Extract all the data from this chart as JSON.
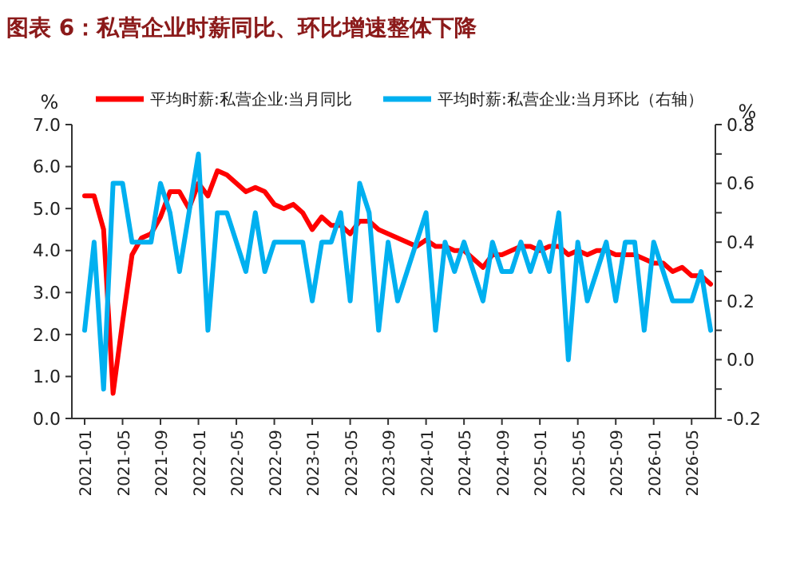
{
  "chart_data": {
    "type": "line",
    "title": "图表 6：私营企业时薪同比、环比增速整体下降",
    "ylabel": "%",
    "y2label": "%",
    "categories": [
      "2021-01",
      null,
      null,
      null,
      "2021-05",
      null,
      null,
      null,
      "2021-09",
      null,
      null,
      null,
      "2022-01",
      null,
      null,
      null,
      "2022-05",
      null,
      null,
      null,
      "2022-09",
      null,
      null,
      null,
      "2023-01",
      null,
      null,
      null,
      "2023-05",
      null,
      null,
      null,
      "2023-09",
      null,
      null,
      null,
      "2024-01",
      null,
      null,
      null,
      "2024-05",
      null,
      null,
      null,
      "2024-09",
      null,
      null,
      null,
      "2025-01",
      null,
      null,
      null,
      "2025-05",
      null,
      null,
      null,
      "2025-09",
      null,
      null,
      null,
      "2026-01",
      null,
      null,
      null,
      "2026-05",
      null,
      null
    ],
    "series": [
      {
        "name": "平均时薪:私营企业:当月同比",
        "color": "#ff0000",
        "values": [
          5.3,
          5.3,
          4.5,
          0.6,
          2.3,
          3.9,
          4.3,
          4.4,
          4.8,
          5.4,
          5.4,
          5.0,
          5.6,
          5.3,
          5.9,
          5.8,
          5.6,
          5.4,
          5.5,
          5.4,
          5.1,
          5.0,
          5.1,
          4.9,
          4.5,
          4.8,
          4.6,
          4.6,
          4.4,
          4.7,
          4.7,
          4.5,
          4.4,
          4.3,
          4.2,
          4.1,
          4.25,
          4.1,
          4.1,
          4.0,
          4.0,
          3.8,
          3.6,
          3.9,
          3.9,
          4.0,
          4.1,
          4.1,
          4.0,
          4.1,
          4.1,
          3.9,
          4.0,
          3.9,
          4.0,
          4.0,
          3.9,
          3.9,
          3.9,
          3.8,
          3.7,
          3.7,
          3.5,
          3.6,
          3.4,
          3.4,
          3.2
        ]
      },
      {
        "name": "平均时薪:私营企业:当月环比（右轴）",
        "color": "#00b0f0",
        "axis": "y2",
        "values": [
          0.1,
          0.4,
          -0.1,
          0.6,
          0.6,
          0.4,
          0.4,
          0.4,
          0.6,
          0.5,
          0.3,
          0.5,
          0.7,
          0.1,
          0.5,
          0.5,
          0.4,
          0.3,
          0.5,
          0.3,
          0.4,
          0.4,
          0.4,
          0.4,
          0.2,
          0.4,
          0.4,
          0.5,
          0.2,
          0.6,
          0.5,
          0.1,
          0.4,
          0.2,
          0.3,
          0.4,
          0.5,
          0.1,
          0.4,
          0.3,
          0.4,
          0.3,
          0.2,
          0.4,
          0.3,
          0.3,
          0.4,
          0.3,
          0.4,
          0.3,
          0.5,
          0.0,
          0.4,
          0.2,
          0.3,
          0.4,
          0.2,
          0.4,
          0.4,
          0.1,
          0.4,
          0.3,
          0.2,
          0.2,
          0.2,
          0.3,
          0.1
        ]
      }
    ],
    "ylim": [
      0,
      7
    ],
    "yticks": [
      {
        "value": 0,
        "label": "0.0"
      },
      {
        "value": 1,
        "label": "1.0"
      },
      {
        "value": 2,
        "label": "2.0"
      },
      {
        "value": 3,
        "label": "3.0"
      },
      {
        "value": 4,
        "label": "4.0"
      },
      {
        "value": 5,
        "label": "5.0"
      },
      {
        "value": 6,
        "label": "6.0"
      },
      {
        "value": 7,
        "label": "7.0"
      }
    ],
    "y2lim": [
      -0.2,
      0.8
    ],
    "y2ticks": [
      -0.2,
      {
        "value": -0.1,
        "label": null
      },
      {
        "value": 0,
        "label": "0.0"
      },
      {
        "value": 0.1,
        "label": null
      },
      0.2,
      {
        "value": 0.3,
        "label": null
      },
      0.4,
      {
        "value": 0.5,
        "label": null
      },
      0.6,
      {
        "value": 0.7,
        "label": null
      },
      0.8
    ],
    "legend": "top",
    "grid": false,
    "marker": "none",
    "line_style": "solid"
  }
}
